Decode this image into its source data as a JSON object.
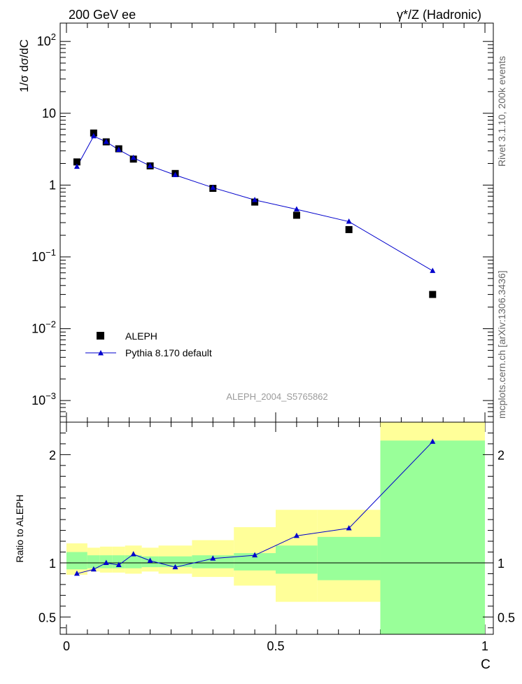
{
  "header": {
    "left": "200 GeV ee",
    "right": "γ*/Z (Hadronic)"
  },
  "side_labels": {
    "top": "Rivet 3.1.10,  200k events",
    "bottom": "mcplots.cern.ch [arXiv:1306.3436]"
  },
  "watermark": "ALEPH_2004_S5765862",
  "colors": {
    "data": "#000000",
    "mc": "#0000cc",
    "band_stat": "#99ff99",
    "band_total": "#ffff99"
  },
  "chart_data": [
    {
      "type": "scatter",
      "panel": "main",
      "ylabel": "1/σ dσ/dC",
      "yscale": "log",
      "ylim": [
        0.0005,
        180
      ],
      "xlim": [
        -0.015,
        1.02
      ],
      "ytick_labels": [
        "10^-3",
        "10^-2",
        "10^-1",
        "1",
        "10",
        "10^2"
      ],
      "legend_placement": "lower-left",
      "series": [
        {
          "name": "ALEPH",
          "marker": "square",
          "x": [
            0.025,
            0.065,
            0.095,
            0.125,
            0.16,
            0.2,
            0.26,
            0.35,
            0.45,
            0.55,
            0.675,
            0.875
          ],
          "y": [
            2.1,
            5.3,
            4.0,
            3.2,
            2.3,
            1.85,
            1.45,
            0.9,
            0.58,
            0.38,
            0.24,
            0.03
          ]
        },
        {
          "name": "Pythia 8.170 default",
          "marker": "triangle",
          "x": [
            0.025,
            0.065,
            0.095,
            0.125,
            0.16,
            0.2,
            0.26,
            0.35,
            0.45,
            0.55,
            0.675,
            0.875
          ],
          "y": [
            1.8,
            4.8,
            4.0,
            3.1,
            2.4,
            1.85,
            1.38,
            0.92,
            0.62,
            0.46,
            0.31,
            0.064
          ]
        }
      ]
    },
    {
      "type": "line",
      "panel": "ratio",
      "ylabel": "Ratio to ALEPH",
      "xlabel": "C",
      "ylim": [
        0.34,
        2.3
      ],
      "xlim": [
        -0.015,
        1.02
      ],
      "xtick_labels": [
        "0",
        "0.5",
        "1"
      ],
      "ytick_labels": [
        "0.5",
        "1",
        "2"
      ],
      "reference_line": 1,
      "bands": {
        "edges": [
          0,
          0.05,
          0.08,
          0.11,
          0.14,
          0.18,
          0.22,
          0.3,
          0.4,
          0.5,
          0.6,
          0.75,
          1.0
        ],
        "stat_low": [
          0.94,
          0.95,
          0.95,
          0.95,
          0.95,
          0.96,
          0.96,
          0.95,
          0.93,
          0.9,
          0.84,
          0.34
        ],
        "stat_high": [
          1.1,
          1.07,
          1.07,
          1.07,
          1.07,
          1.06,
          1.06,
          1.07,
          1.09,
          1.16,
          1.24,
          2.13
        ],
        "total_low": [
          0.89,
          0.92,
          0.91,
          0.91,
          0.9,
          0.92,
          0.9,
          0.87,
          0.79,
          0.64,
          0.64,
          0.34
        ],
        "total_high": [
          1.18,
          1.14,
          1.15,
          1.15,
          1.16,
          1.14,
          1.16,
          1.21,
          1.33,
          1.49,
          1.49,
          2.3
        ]
      },
      "series": [
        {
          "name": "Pythia 8.170 default",
          "x": [
            0.025,
            0.065,
            0.095,
            0.125,
            0.16,
            0.2,
            0.26,
            0.35,
            0.45,
            0.55,
            0.675,
            0.875
          ],
          "y": [
            0.9,
            0.94,
            1.0,
            0.98,
            1.08,
            1.02,
            0.96,
            1.04,
            1.07,
            1.25,
            1.32,
            2.12
          ]
        }
      ]
    }
  ]
}
